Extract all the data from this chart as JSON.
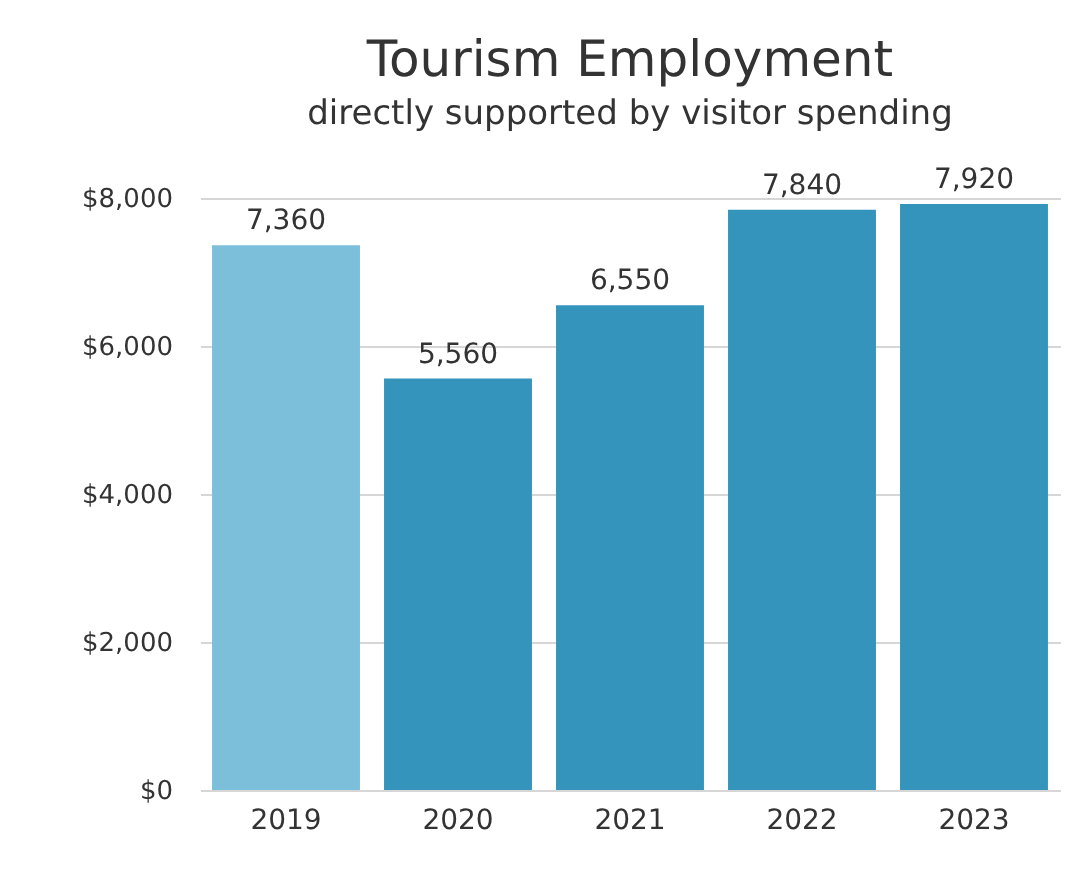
{
  "chart_data": {
    "type": "bar",
    "title": "Tourism Employment",
    "subtitle": "directly supported by visitor spending",
    "categories": [
      "2019",
      "2020",
      "2021",
      "2022",
      "2023"
    ],
    "values": [
      7360,
      5560,
      6550,
      7840,
      7920
    ],
    "colors": [
      "#7bbfdb",
      "#3494bb",
      "#3494bb",
      "#3494bb",
      "#3494bb"
    ],
    "value_labels": [
      "7,360",
      "5,560",
      "6,550",
      "7,840",
      "7,920"
    ],
    "ylim": [
      0,
      8000
    ],
    "yticks": [
      {
        "value": 0,
        "label": "$0"
      },
      {
        "value": 2000,
        "label": "$2,000"
      },
      {
        "value": 4000,
        "label": "$4,000"
      },
      {
        "value": 6000,
        "label": "$6,000"
      },
      {
        "value": 8000,
        "label": "$8,000"
      }
    ],
    "grid": "y"
  }
}
